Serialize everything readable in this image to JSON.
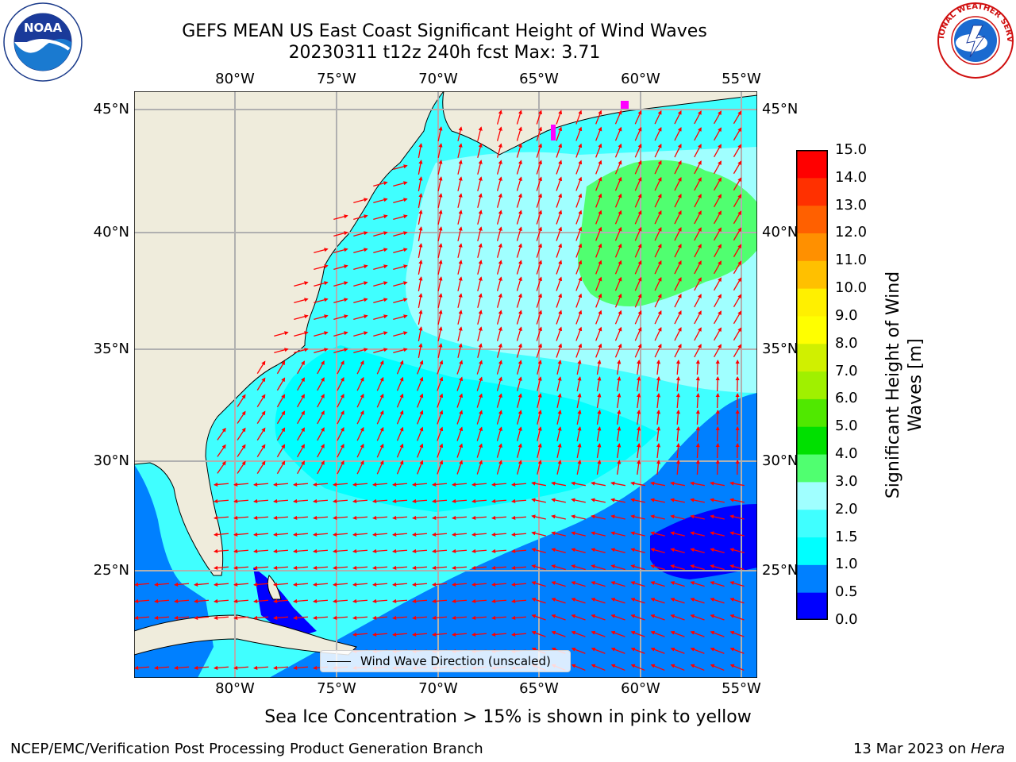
{
  "title_line1": "GEFS MEAN US East Coast Significant Height of Wind Waves",
  "title_line2": "20230311 t12z 240h fcst   Max: 3.71",
  "lon_labels": [
    "80°W",
    "75°W",
    "70°W",
    "65°W",
    "60°W",
    "55°W"
  ],
  "lat_labels": [
    "45°N",
    "40°N",
    "35°N",
    "30°N",
    "25°N"
  ],
  "colorbar": {
    "ticks": [
      "0.0",
      "0.5",
      "1.0",
      "1.5",
      "2.0",
      "3.0",
      "4.0",
      "5.0",
      "6.0",
      "7.0",
      "8.0",
      "9.0",
      "10.0",
      "11.0",
      "12.0",
      "13.0",
      "14.0",
      "15.0"
    ],
    "colors": [
      "#0000ff",
      "#0080ff",
      "#00ffff",
      "#40ffff",
      "#a0ffff",
      "#50ff70",
      "#00e000",
      "#50e800",
      "#a0f000",
      "#d0f000",
      "#ffff00",
      "#fff000",
      "#ffc000",
      "#ff9000",
      "#ff6000",
      "#ff3000",
      "#ff0000"
    ],
    "title": "Significant Height of Wind Waves [m]"
  },
  "legend_label": "Wind Wave Direction (unscaled)",
  "sea_ice_note": "Sea Ice Concentration > 15% is shown in pink to yellow",
  "footer_left": "NCEP/EMC/Verification Post Processing Product Generation Branch",
  "footer_right_date": "13 Mar 2023 on ",
  "footer_right_host": "Hera",
  "logos": {
    "left": "NOAA",
    "right": "NATIONAL WEATHER SERVICE"
  },
  "colors": {
    "land": "#efecdc",
    "arrow": "#ff0000",
    "grid": "#b0b0b0"
  }
}
